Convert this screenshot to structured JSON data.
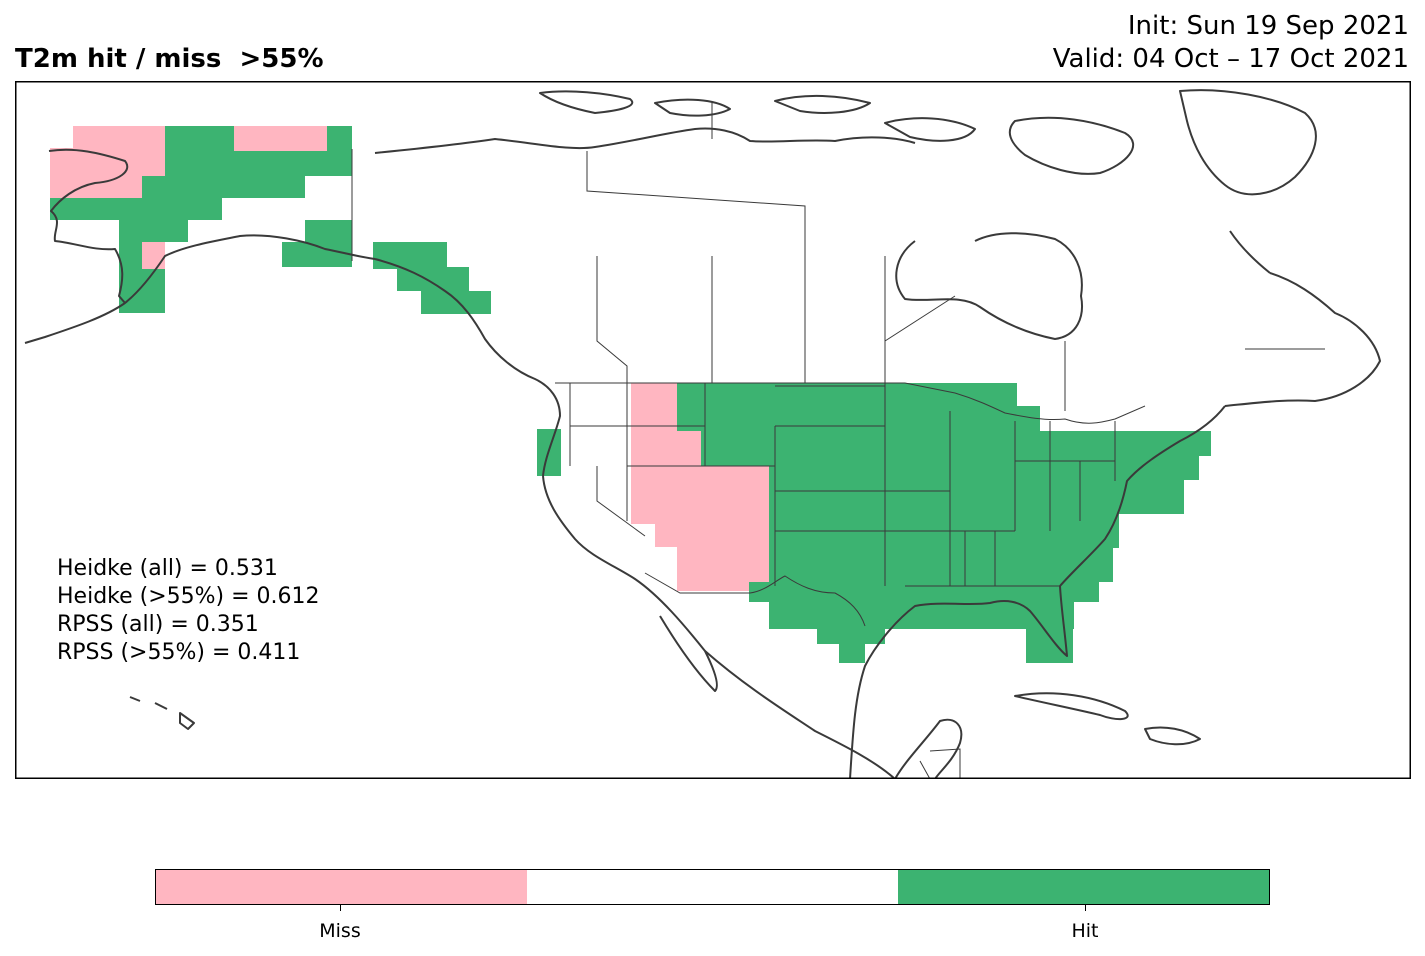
{
  "title": {
    "left": "T2m hit / miss  >55%",
    "init": "Init: Sun 19 Sep 2021",
    "valid": "Valid: 04 Oct – 17 Oct 2021"
  },
  "colors": {
    "miss": "#ffb6c1",
    "neutral": "#ffffff",
    "hit": "#3cb371",
    "coast": "#3a3a3a",
    "border": "#000000"
  },
  "stats": {
    "heidke_all": "Heidke (all) = 0.531",
    "heidke_gt55": "Heidke (>55%) = 0.612",
    "rpss_all": "RPSS (all) = 0.351",
    "rpss_gt55": "RPSS (>55%) = 0.411"
  },
  "colorbar": {
    "miss_label": "Miss",
    "hit_label": "Hit"
  }
}
